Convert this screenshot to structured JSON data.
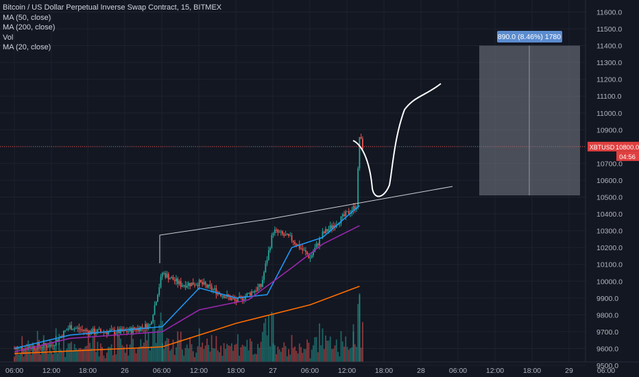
{
  "legend": {
    "title": "Bitcoin / US Dollar Perpetual Inverse Swap Contract, 15, BITMEX",
    "indicators": [
      "MA (50, close)",
      "MA (200, close)",
      "Vol",
      "MA (20, close)"
    ]
  },
  "price_scale": {
    "ticks": [
      "11600.0",
      "11500.0",
      "11400.0",
      "11300.0",
      "11200.0",
      "11100.0",
      "11000.0",
      "10900.0",
      "10800.0",
      "10700.0",
      "10600.0",
      "10500.0",
      "10400.0",
      "10300.0",
      "10200.0",
      "10100.0",
      "10000.0",
      "9900.0",
      "9800.0",
      "9700.0",
      "9600.0",
      "9500.0"
    ],
    "symbol_badge": "XBTUSD",
    "last_price": "10800.0",
    "countdown": "04:56"
  },
  "time_axis": {
    "ticks": [
      "06:00",
      "12:00",
      "18:00",
      "26",
      "06:00",
      "12:00",
      "18:00",
      "27",
      "06:00",
      "12:00",
      "18:00",
      "28",
      "06:00",
      "12:00",
      "18:00",
      "29",
      "06:00"
    ]
  },
  "measurement": {
    "label": "890.0 (8.46%) 1780"
  },
  "colors": {
    "background": "#131722",
    "grid": "#1e222d",
    "up": "#26a69a",
    "down": "#ef5350",
    "ma20": "#2196f3",
    "ma50": "#9c27b0",
    "ma200": "#ff6d00",
    "last_price_line": "#ef5350",
    "badge": "#e04040",
    "measure_box": "#787b86",
    "measure_label": "#5b8ccf",
    "drawing": "#ffffff",
    "axis_text": "#b2b5be"
  },
  "chart_data": {
    "type": "candlestick",
    "y_unit": "USD",
    "ylim": [
      9500,
      11700
    ],
    "x_labels": [
      "06:00",
      "12:00",
      "18:00",
      "26",
      "06:00",
      "12:00",
      "18:00",
      "27",
      "06:00",
      "12:00",
      "18:00",
      "28",
      "06:00",
      "12:00",
      "18:00",
      "29",
      "06:00"
    ],
    "grid": true,
    "candles_close_trajectory": [
      {
        "t": "25 06:00",
        "price": 9600
      },
      {
        "t": "25 12:00",
        "price": 9620
      },
      {
        "t": "25 15:00",
        "price": 9730
      },
      {
        "t": "25 18:00",
        "price": 9700
      },
      {
        "t": "26 00:00",
        "price": 9700
      },
      {
        "t": "26 04:00",
        "price": 9740
      },
      {
        "t": "26 06:00",
        "price": 10050
      },
      {
        "t": "26 09:00",
        "price": 9980
      },
      {
        "t": "26 12:00",
        "price": 9990
      },
      {
        "t": "26 18:00",
        "price": 9880
      },
      {
        "t": "26 22:00",
        "price": 9970
      },
      {
        "t": "27 00:00",
        "price": 10300
      },
      {
        "t": "27 03:00",
        "price": 10250
      },
      {
        "t": "27 06:00",
        "price": 10140
      },
      {
        "t": "27 08:00",
        "price": 10280
      },
      {
        "t": "27 11:00",
        "price": 10370
      },
      {
        "t": "27 13:30",
        "price": 10450
      },
      {
        "t": "27 14:00",
        "price": 10860
      },
      {
        "t": "27 14:30",
        "price": 10800
      }
    ],
    "series": [
      {
        "name": "MA (20, close)",
        "points": [
          [
            "25 06:00",
            9600
          ],
          [
            "25 15:00",
            9680
          ],
          [
            "26 06:00",
            9730
          ],
          [
            "26 12:00",
            9960
          ],
          [
            "26 18:00",
            9900
          ],
          [
            "26 23:00",
            9920
          ],
          [
            "27 03:00",
            10200
          ],
          [
            "27 08:00",
            10260
          ],
          [
            "27 14:00",
            10450
          ]
        ]
      },
      {
        "name": "MA (50, close)",
        "points": [
          [
            "25 06:00",
            9580
          ],
          [
            "25 15:00",
            9660
          ],
          [
            "26 06:00",
            9700
          ],
          [
            "26 12:00",
            9830
          ],
          [
            "26 20:00",
            9890
          ],
          [
            "27 03:00",
            10080
          ],
          [
            "27 08:00",
            10220
          ],
          [
            "27 14:00",
            10330
          ]
        ]
      },
      {
        "name": "MA (200, close)",
        "points": [
          [
            "25 06:00",
            9570
          ],
          [
            "26 06:00",
            9610
          ],
          [
            "26 18:00",
            9750
          ],
          [
            "27 06:00",
            9860
          ],
          [
            "27 14:00",
            9970
          ]
        ]
      }
    ],
    "annotations": {
      "last_price": 10800,
      "measure_range": {
        "from": 10510,
        "to": 11400,
        "change": "890.0",
        "percent": "8.46%",
        "bars": "1780"
      }
    }
  }
}
